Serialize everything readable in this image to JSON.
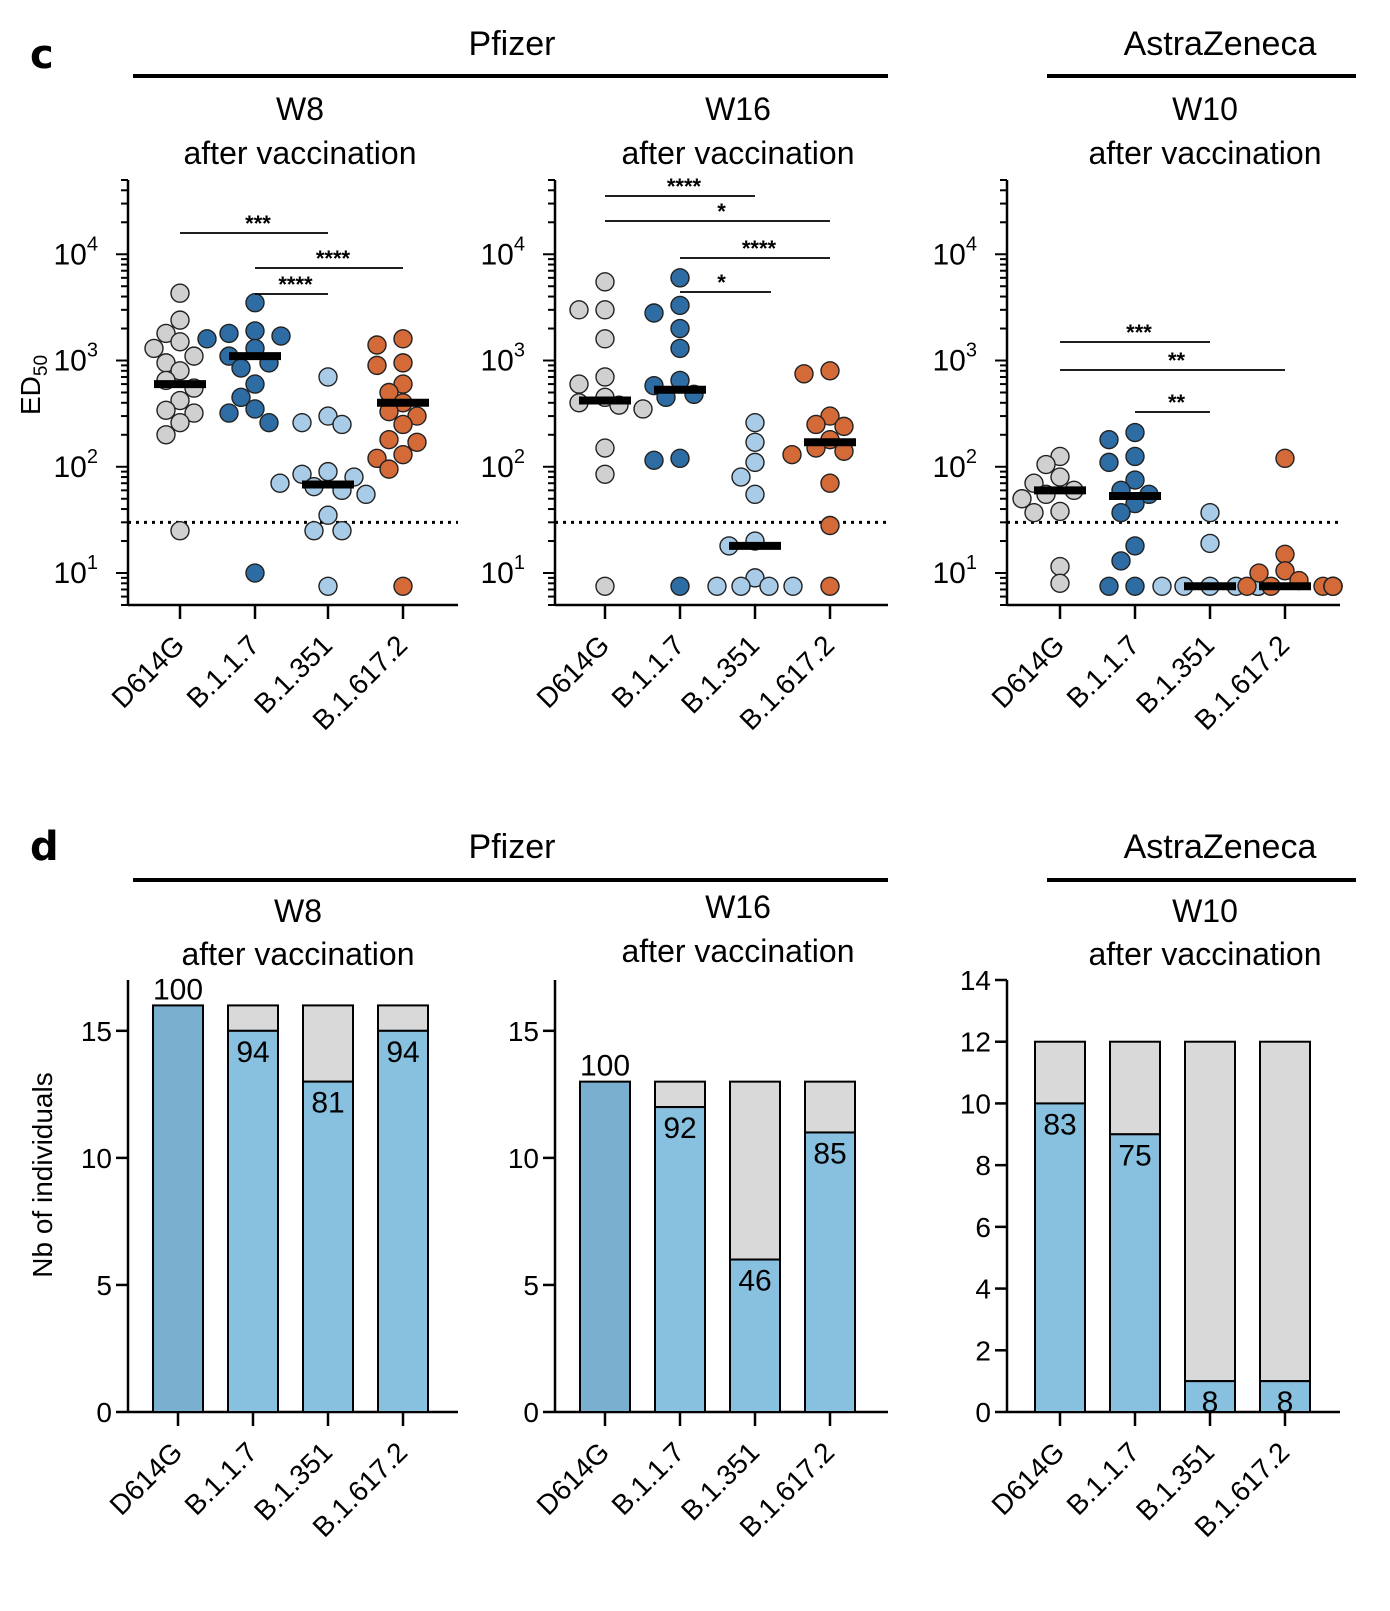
{
  "colors": {
    "D614G": "#d0d0d0",
    "B.1.1.7": "#2e6da4",
    "B.1.351": "#a8cbe8",
    "B.1.617.2": "#d46a38",
    "bar_main": "#88c0e0",
    "bar_d614g": "#7aafd0",
    "bar_rest": "#d9d9d9"
  },
  "panels": {
    "c": {
      "letter": "c"
    },
    "d": {
      "letter": "d"
    }
  },
  "groups": [
    {
      "id": "pfizer",
      "label": "Pfizer"
    },
    {
      "id": "az",
      "label": "AstraZeneca"
    }
  ],
  "titles": {
    "w8": {
      "line1": "W8",
      "line2": "after vaccination"
    },
    "w16": {
      "line1": "W16",
      "line2": "after vaccination"
    },
    "w10": {
      "line1": "W10",
      "line2": "after vaccination"
    }
  },
  "chart_data": [
    {
      "type": "scatter",
      "panel": "c",
      "subplot": "w8",
      "ylabel": "ED50",
      "yscale": "log",
      "ylim": [
        5,
        50000
      ],
      "yticks": [
        10,
        100,
        1000,
        10000
      ],
      "ytick_labels": [
        "10^1",
        "10^2",
        "10^3",
        "10^4"
      ],
      "threshold": 30,
      "categories": [
        "D614G",
        "B.1.1.7",
        "B.1.351",
        "B.1.617.2"
      ],
      "points": [
        [
          4300,
          2400,
          1800,
          1500,
          1300,
          1100,
          950,
          800,
          650,
          550,
          420,
          340,
          320,
          260,
          200,
          25
        ],
        [
          3500,
          1900,
          1800,
          1700,
          1600,
          1300,
          1100,
          950,
          850,
          600,
          450,
          350,
          320,
          260,
          10
        ],
        [
          700,
          300,
          260,
          250,
          90,
          85,
          80,
          70,
          65,
          60,
          55,
          35,
          25,
          25,
          7.5
        ],
        [
          1600,
          1400,
          950,
          900,
          600,
          500,
          400,
          330,
          300,
          250,
          180,
          170,
          130,
          120,
          95,
          7.5
        ]
      ],
      "medians": [
        600,
        1100,
        68,
        400
      ],
      "significance": [
        {
          "from": 0,
          "to": 2,
          "label": "***"
        },
        {
          "from": 1,
          "to": 3,
          "label": "****"
        },
        {
          "from": 1,
          "to": 2,
          "label": "****"
        }
      ]
    },
    {
      "type": "scatter",
      "panel": "c",
      "subplot": "w16",
      "yscale": "log",
      "ylim": [
        5,
        50000
      ],
      "yticks": [
        10,
        100,
        1000,
        10000
      ],
      "ytick_labels": [
        "10^1",
        "10^2",
        "10^3",
        "10^4"
      ],
      "threshold": 30,
      "categories": [
        "D614G",
        "B.1.1.7",
        "B.1.351",
        "B.1.617.2"
      ],
      "points": [
        [
          5500,
          3000,
          3000,
          1600,
          700,
          600,
          450,
          400,
          380,
          350,
          150,
          85,
          7.5
        ],
        [
          6000,
          3300,
          2800,
          2000,
          1300,
          650,
          580,
          480,
          450,
          120,
          115,
          7.5
        ],
        [
          260,
          170,
          110,
          80,
          55,
          20,
          18,
          9,
          7.5,
          7.5,
          7.5,
          7.5
        ],
        [
          800,
          750,
          300,
          250,
          240,
          180,
          150,
          140,
          130,
          70,
          28,
          7.5
        ]
      ],
      "medians": [
        420,
        530,
        18,
        170
      ],
      "significance": [
        {
          "from": 0,
          "to": 2,
          "label": "****"
        },
        {
          "from": 0,
          "to": 3,
          "label": "*"
        },
        {
          "from": 1,
          "to": 3,
          "label": "****"
        },
        {
          "from": 1,
          "to": 2,
          "label": "*"
        }
      ]
    },
    {
      "type": "scatter",
      "panel": "c",
      "subplot": "w10",
      "yscale": "log",
      "ylim": [
        5,
        50000
      ],
      "yticks": [
        10,
        100,
        1000,
        10000
      ],
      "ytick_labels": [
        "10^1",
        "10^2",
        "10^3",
        "10^4"
      ],
      "threshold": 30,
      "categories": [
        "D614G",
        "B.1.1.7",
        "B.1.351",
        "B.1.617.2"
      ],
      "points": [
        [
          125,
          105,
          80,
          70,
          60,
          55,
          50,
          38,
          37,
          11.5,
          8
        ],
        [
          210,
          180,
          125,
          110,
          75,
          60,
          55,
          45,
          37,
          18,
          13,
          7.5,
          7.5
        ],
        [
          37,
          19,
          7.5,
          7.5,
          7.5,
          7.5,
          7.5,
          7.5,
          7.5,
          7.5,
          7.5
        ],
        [
          120,
          15,
          10.5,
          10,
          8.5,
          7.5,
          7.5,
          7.5,
          7.5,
          7.5,
          7.5,
          7.5
        ]
      ],
      "medians": [
        60,
        53,
        7.5,
        7.5
      ],
      "significance": [
        {
          "from": 0,
          "to": 2,
          "label": "***"
        },
        {
          "from": 0,
          "to": 3,
          "label": "**"
        },
        {
          "from": 1,
          "to": 2,
          "label": "**"
        }
      ]
    },
    {
      "type": "bar",
      "panel": "d",
      "subplot": "w8",
      "ylabel": "Nb of individuals",
      "ylim": [
        0,
        17
      ],
      "yticks": [
        0,
        5,
        10,
        15
      ],
      "categories": [
        "D614G",
        "B.1.1.7",
        "B.1.351",
        "B.1.617.2"
      ],
      "series": [
        {
          "values": [
            16,
            15,
            13,
            15
          ]
        },
        {
          "values": [
            0,
            1,
            3,
            1
          ]
        }
      ],
      "percent_labels": [
        "100",
        "94",
        "81",
        "94"
      ]
    },
    {
      "type": "bar",
      "panel": "d",
      "subplot": "w16",
      "ylim": [
        0,
        17
      ],
      "yticks": [
        0,
        5,
        10,
        15
      ],
      "categories": [
        "D614G",
        "B.1.1.7",
        "B.1.351",
        "B.1.617.2"
      ],
      "series": [
        {
          "values": [
            13,
            12,
            6,
            11
          ]
        },
        {
          "values": [
            0,
            1,
            7,
            2
          ]
        }
      ],
      "percent_labels": [
        "100",
        "92",
        "46",
        "85"
      ]
    },
    {
      "type": "bar",
      "panel": "d",
      "subplot": "w10",
      "ylim": [
        0,
        14
      ],
      "yticks": [
        0,
        2,
        4,
        6,
        8,
        10,
        12,
        14
      ],
      "categories": [
        "D614G",
        "B.1.1.7",
        "B.1.351",
        "B.1.617.2"
      ],
      "series": [
        {
          "values": [
            10,
            9,
            1,
            1
          ]
        },
        {
          "values": [
            2,
            3,
            11,
            11
          ]
        }
      ],
      "percent_labels": [
        "83",
        "75",
        "8",
        "8"
      ]
    }
  ]
}
